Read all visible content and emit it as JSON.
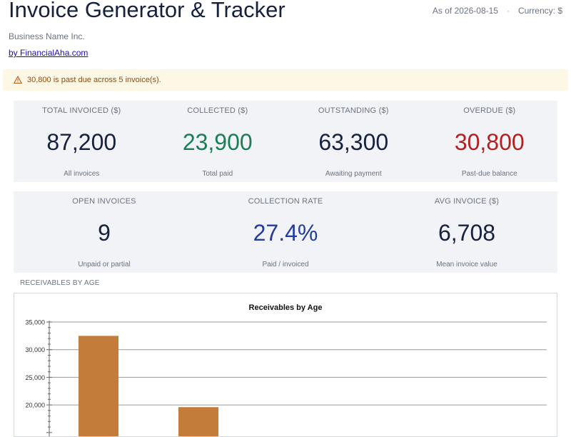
{
  "header": {
    "title": "Invoice Generator & Tracker",
    "as_of": "As of 2026-08-15",
    "separator": "·",
    "currency": "Currency: $",
    "business_name": "Business Name Inc.",
    "byline": "by FinancialAha.com"
  },
  "alert": {
    "icon": "warning-icon",
    "text": "30,800 is past due across 5 invoice(s).",
    "color": "#8a4a12",
    "background": "#fdf8e6"
  },
  "stats_row1": [
    {
      "label": "TOTAL INVOICED ($)",
      "value": "87,200",
      "note": "All invoices"
    },
    {
      "label": "COLLECTED ($)",
      "value": "23,900",
      "note": "Total paid",
      "color": "#1a7f56"
    },
    {
      "label": "OUTSTANDING ($)",
      "value": "63,300",
      "note": "Awaiting payment"
    },
    {
      "label": "OVERDUE ($)",
      "value": "30,800",
      "note": "Past-due balance",
      "color": "#b32020"
    }
  ],
  "stats_row2": [
    {
      "label": "OPEN INVOICES",
      "value": "9",
      "note": "Unpaid or partial"
    },
    {
      "label": "COLLECTION RATE",
      "value": "27.4%",
      "note": "Paid / invoiced",
      "color": "#233c9e"
    },
    {
      "label": "AVG INVOICE ($)",
      "value": "6,708",
      "note": "Mean invoice value"
    }
  ],
  "section_label": "RECEIVABLES BY AGE",
  "chart_data": {
    "type": "bar",
    "title": "Receivables by Age",
    "xlabel": "",
    "ylabel": "",
    "ylim": [
      15000,
      35000
    ],
    "yticks": [
      20000,
      25000,
      30000,
      35000
    ],
    "ytick_labels": [
      "20,000",
      "25,000",
      "30,000",
      "35,000"
    ],
    "grid": true,
    "bar_color": "#c47c3b",
    "values": [
      32500,
      19600
    ]
  }
}
